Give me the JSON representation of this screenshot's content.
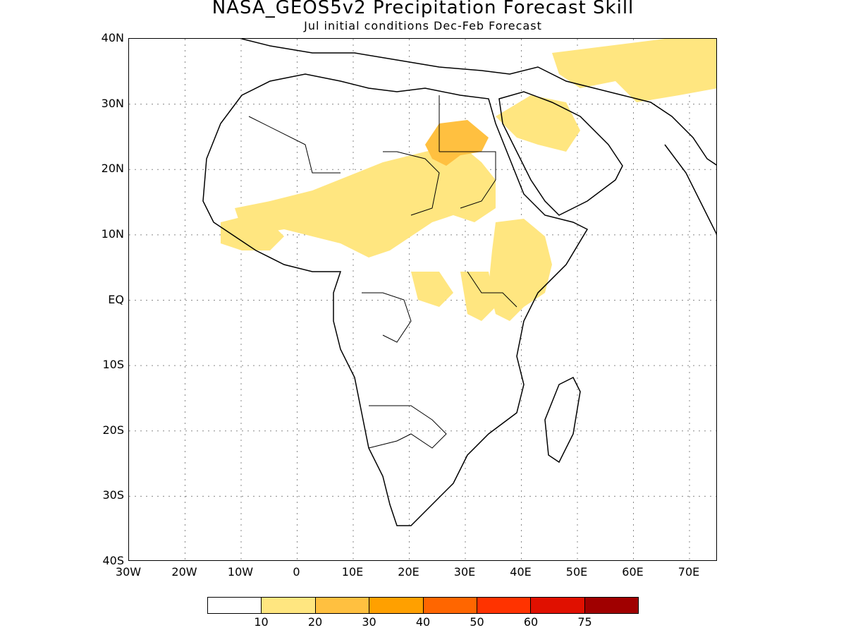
{
  "title": "NASA_GEOS5v2 Precipitation Forecast Skill",
  "subtitle": "Jul initial conditions  Dec-Feb Forecast",
  "map": {
    "lat_labels": [
      "40N",
      "30N",
      "20N",
      "10N",
      "EQ",
      "10S",
      "20S",
      "30S",
      "40S"
    ],
    "lon_labels": [
      "30W",
      "20W",
      "10W",
      "0",
      "10E",
      "20E",
      "30E",
      "40E",
      "50E",
      "60E",
      "70E"
    ],
    "lat_range": [
      -40,
      40
    ],
    "lon_range": [
      -30,
      75
    ],
    "gridlines": "dotted",
    "coastline_color": "#000000"
  },
  "colorbar": {
    "labels": [
      "10",
      "20",
      "30",
      "40",
      "50",
      "60",
      "75"
    ],
    "colors": [
      "#ffffff",
      "#ffe680",
      "#ffc040",
      "#ffa000",
      "#ff6600",
      "#ff3300",
      "#e01000",
      "#a00000"
    ]
  }
}
